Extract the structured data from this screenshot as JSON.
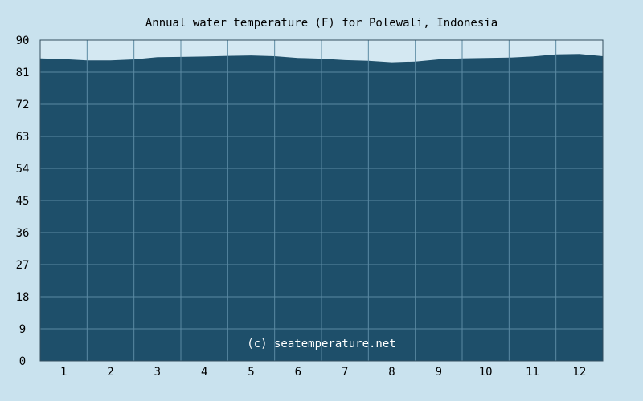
{
  "chart_data": {
    "type": "area",
    "title": "Annual water temperature (F) for Polewali, Indonesia",
    "xlabel": "",
    "ylabel": "",
    "x_ticks": [
      "1",
      "2",
      "3",
      "4",
      "5",
      "6",
      "7",
      "8",
      "9",
      "10",
      "11",
      "12"
    ],
    "y_ticks": [
      "0",
      "9",
      "18",
      "27",
      "36",
      "45",
      "54",
      "63",
      "72",
      "81",
      "90"
    ],
    "xlim": [
      0.5,
      12.5
    ],
    "ylim": [
      0,
      90
    ],
    "grid": true,
    "watermark": "(c) seatemperature.net",
    "x": [
      0.5,
      1.0,
      1.5,
      2.0,
      2.5,
      3.0,
      3.5,
      4.0,
      4.5,
      5.0,
      5.5,
      6.0,
      6.5,
      7.0,
      7.5,
      8.0,
      8.5,
      9.0,
      9.5,
      10.0,
      10.5,
      11.0,
      11.5,
      12.0,
      12.5
    ],
    "values": [
      84.9,
      84.7,
      84.3,
      84.3,
      84.6,
      85.2,
      85.3,
      85.4,
      85.6,
      85.7,
      85.5,
      85.0,
      84.8,
      84.4,
      84.2,
      83.8,
      84.0,
      84.6,
      84.9,
      85.0,
      85.1,
      85.4,
      86.0,
      86.1,
      85.5
    ],
    "colors": {
      "background": "#c9e2ee",
      "plot_background": "#d4e8f2",
      "fill": "#1e4f6a",
      "grid": "#5b8aa3",
      "axis": "#334e5e"
    }
  }
}
